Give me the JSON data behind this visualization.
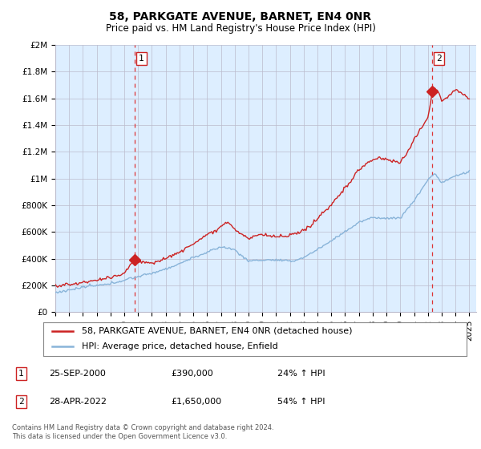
{
  "title": "58, PARKGATE AVENUE, BARNET, EN4 0NR",
  "subtitle": "Price paid vs. HM Land Registry's House Price Index (HPI)",
  "ylim": [
    0,
    2000000
  ],
  "xlim": [
    1995,
    2025.5
  ],
  "yticks": [
    0,
    200000,
    400000,
    600000,
    800000,
    1000000,
    1200000,
    1400000,
    1600000,
    1800000,
    2000000
  ],
  "ytick_labels": [
    "£0",
    "£200K",
    "£400K",
    "£600K",
    "£800K",
    "£1M",
    "£1.2M",
    "£1.4M",
    "£1.6M",
    "£1.8M",
    "£2M"
  ],
  "xticks": [
    1995,
    1996,
    1997,
    1998,
    1999,
    2000,
    2001,
    2002,
    2003,
    2004,
    2005,
    2006,
    2007,
    2008,
    2009,
    2010,
    2011,
    2012,
    2013,
    2014,
    2015,
    2016,
    2017,
    2018,
    2019,
    2020,
    2021,
    2022,
    2023,
    2024,
    2025
  ],
  "purchase1_x": 2000.73,
  "purchase1_y": 390000,
  "purchase2_x": 2022.32,
  "purchase2_y": 1650000,
  "vline1_x": 2000.73,
  "vline2_x": 2022.32,
  "hpi_color": "#89b4d9",
  "price_color": "#cc2222",
  "vline_color": "#dd3333",
  "background_color": "#ffffff",
  "plot_bg_color": "#ddeeff",
  "grid_color": "#bbbbcc",
  "legend_entry1": "58, PARKGATE AVENUE, BARNET, EN4 0NR (detached house)",
  "legend_entry2": "HPI: Average price, detached house, Enfield",
  "annotation1_date": "25-SEP-2000",
  "annotation1_price": "£390,000",
  "annotation1_hpi": "24% ↑ HPI",
  "annotation2_date": "28-APR-2022",
  "annotation2_price": "£1,650,000",
  "annotation2_hpi": "54% ↑ HPI",
  "footer": "Contains HM Land Registry data © Crown copyright and database right 2024.\nThis data is licensed under the Open Government Licence v3.0.",
  "title_fontsize": 10,
  "subtitle_fontsize": 8.5,
  "tick_fontsize": 7.5,
  "legend_fontsize": 8,
  "annotation_fontsize": 8
}
